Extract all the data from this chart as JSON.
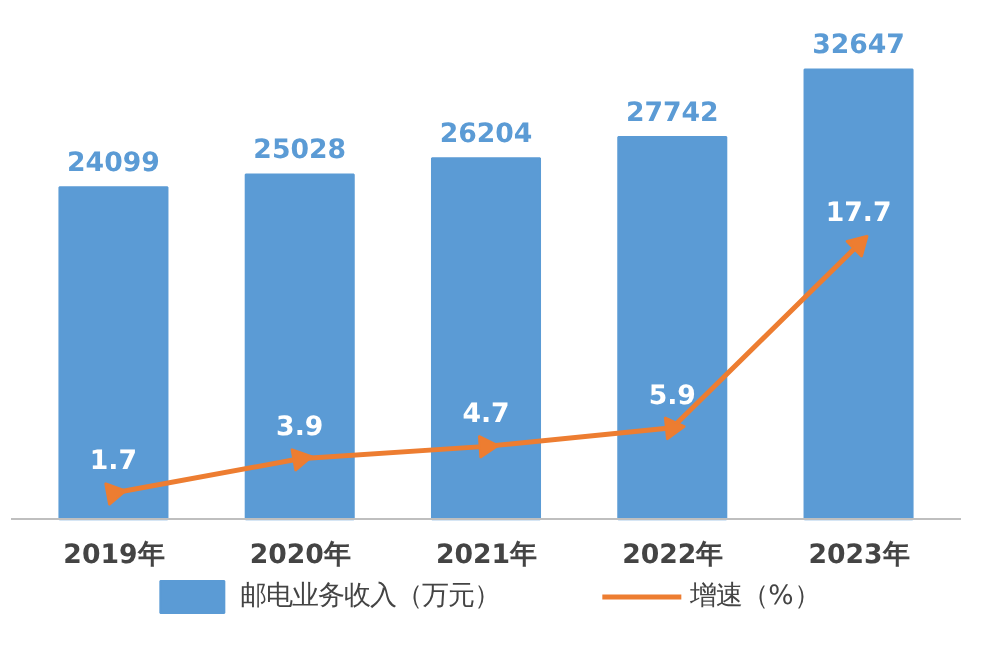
{
  "chart_data": {
    "type": "bar",
    "categories": [
      "2019年",
      "2020年",
      "2021年",
      "2022年",
      "2023年"
    ],
    "series": [
      {
        "name": "邮电业务收入（万元）",
        "color": "#5b9bd5",
        "values": [
          24099,
          25028,
          26204,
          27742,
          32647
        ]
      },
      {
        "name": "增速（%）",
        "type": "line",
        "axis": "y2",
        "color": "#ed7d31",
        "values": [
          1.7,
          3.9,
          4.7,
          5.9,
          17.7
        ]
      }
    ],
    "data_labels": true,
    "grid": false,
    "legend": "bottom",
    "marker": "triangle",
    "tick_labels": "x"
  }
}
